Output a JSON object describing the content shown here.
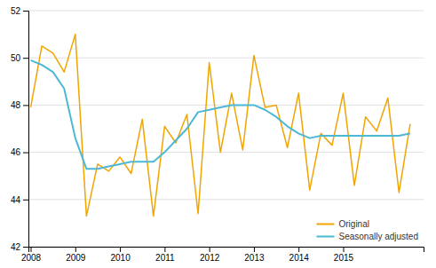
{
  "chart_data": {
    "type": "line",
    "x": [
      2008,
      2008.25,
      2008.5,
      2008.75,
      2009,
      2009.25,
      2009.5,
      2009.75,
      2010,
      2010.25,
      2010.5,
      2010.75,
      2011,
      2011.25,
      2011.5,
      2011.75,
      2012,
      2012.25,
      2012.5,
      2012.75,
      2013,
      2013.25,
      2013.5,
      2013.75,
      2014,
      2014.25,
      2014.5,
      2014.75,
      2015,
      2015.25,
      2015.5,
      2015.75,
      2016,
      2016.25,
      2016.5
    ],
    "series": [
      {
        "name": "Original",
        "color": "#f0a500",
        "values": [
          47.9,
          50.5,
          50.2,
          49.4,
          51.0,
          43.3,
          45.5,
          45.2,
          45.8,
          45.1,
          47.4,
          43.3,
          47.1,
          46.4,
          47.6,
          43.4,
          49.8,
          46.0,
          48.5,
          46.1,
          50.1,
          47.9,
          48.0,
          46.2,
          48.5,
          44.4,
          46.8,
          46.3,
          48.5,
          44.6,
          47.5,
          46.9,
          48.3,
          44.3,
          47.2
        ]
      },
      {
        "name": "Seasonally adjusted",
        "color": "#4db8d4",
        "values": [
          49.9,
          49.7,
          49.4,
          48.7,
          46.6,
          45.3,
          45.3,
          45.4,
          45.5,
          45.6,
          45.6,
          45.6,
          46.0,
          46.5,
          47.0,
          47.7,
          47.8,
          47.9,
          48.0,
          48.0,
          48.0,
          47.8,
          47.5,
          47.1,
          46.8,
          46.6,
          46.7,
          46.7,
          46.7,
          46.7,
          46.7,
          46.7,
          46.7,
          46.7,
          46.8
        ]
      }
    ],
    "xlim": [
      2007.95,
      2016.8
    ],
    "xticks": [
      2008,
      2009,
      2010,
      2011,
      2012,
      2013,
      2014,
      2015
    ],
    "ylim": [
      42,
      52
    ],
    "yticks": [
      42,
      44,
      46,
      48,
      50,
      52
    ],
    "grid": true,
    "legend": "lower right"
  }
}
